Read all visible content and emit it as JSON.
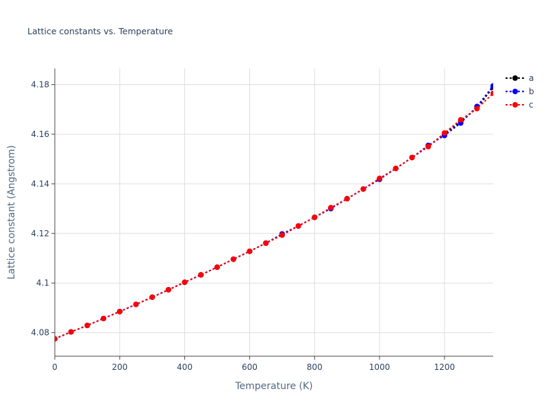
{
  "chart_data": {
    "type": "line",
    "title": "Lattice constants vs. Temperature",
    "xlabel": "Temperature (K)",
    "ylabel": "Lattice constant (Angstrom)",
    "xlim": [
      0,
      1350
    ],
    "ylim": [
      4.0705,
      4.1865
    ],
    "x_ticks": [
      0,
      200,
      400,
      600,
      800,
      1000,
      1200
    ],
    "x_tick_labels": [
      "0",
      "200",
      "400",
      "600",
      "800",
      "1000",
      "1200"
    ],
    "y_ticks": [
      4.08,
      4.1,
      4.12,
      4.14,
      4.16,
      4.18
    ],
    "y_tick_labels": [
      "4.08",
      "4.1",
      "4.12",
      "4.14",
      "4.16",
      "4.18"
    ],
    "grid": true,
    "legend_position": "top-right",
    "x": [
      0,
      50,
      100,
      150,
      200,
      250,
      300,
      350,
      400,
      450,
      500,
      550,
      600,
      650,
      700,
      750,
      800,
      850,
      900,
      950,
      1000,
      1050,
      1100,
      1150,
      1200,
      1250,
      1300,
      1350
    ],
    "series": [
      {
        "name": "a",
        "color": "#000000",
        "values": [
          4.0775,
          4.0803,
          4.0829,
          4.0857,
          4.0885,
          4.0914,
          4.0943,
          4.0973,
          4.1003,
          4.1033,
          4.1064,
          4.1096,
          4.1128,
          4.1161,
          4.1195,
          4.123,
          4.1265,
          4.1302,
          4.134,
          4.1379,
          4.142,
          4.1462,
          4.1506,
          4.155,
          4.1602,
          4.1652,
          4.1705,
          4.179
        ]
      },
      {
        "name": "b",
        "color": "#0000ff",
        "values": [
          4.0775,
          4.0803,
          4.0829,
          4.0857,
          4.0885,
          4.0914,
          4.0943,
          4.0973,
          4.1003,
          4.1033,
          4.1064,
          4.1096,
          4.1128,
          4.1161,
          4.1198,
          4.123,
          4.1265,
          4.13,
          4.134,
          4.1379,
          4.1418,
          4.1462,
          4.1506,
          4.1555,
          4.1595,
          4.1645,
          4.1712,
          4.1795
        ]
      },
      {
        "name": "c",
        "color": "#ff0000",
        "values": [
          4.0775,
          4.0803,
          4.0829,
          4.0857,
          4.0885,
          4.0914,
          4.0943,
          4.0973,
          4.1003,
          4.1033,
          4.1064,
          4.1096,
          4.1128,
          4.1161,
          4.1193,
          4.123,
          4.1265,
          4.1304,
          4.134,
          4.1379,
          4.1422,
          4.1462,
          4.1506,
          4.155,
          4.1605,
          4.1658,
          4.1703,
          4.1765
        ]
      }
    ]
  }
}
